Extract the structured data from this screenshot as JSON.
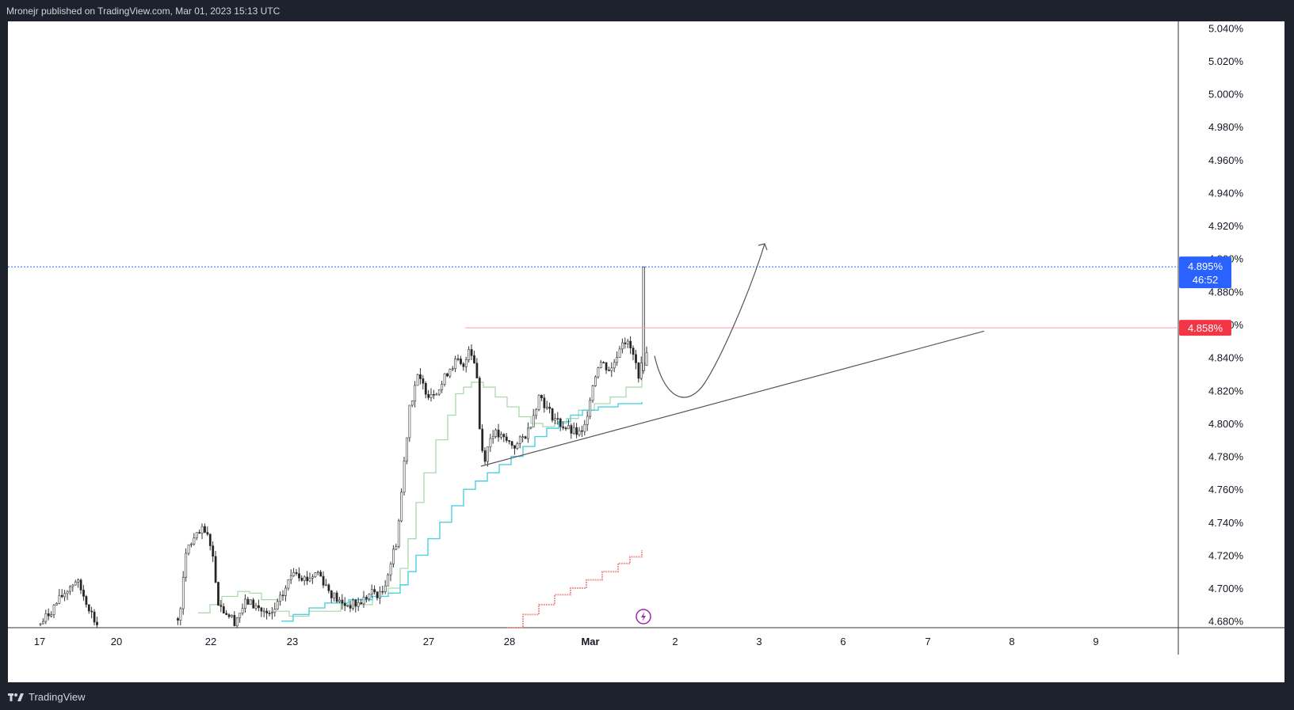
{
  "header": {
    "publish_text": "Mronejr published on TradingView.com, Mar 01, 2023 15:13 UTC"
  },
  "footer": {
    "brand": "TradingView"
  },
  "colors": {
    "candle_up": "#ffffff",
    "candle_down": "#222222",
    "candle_border": "#333333",
    "price_badge": "#2962ff",
    "level_badge": "#f23645",
    "ma_fast": "#a5d6a7",
    "ma_mid": "#4dd0e1",
    "ma_slow": "#ef9a9a",
    "projection": "#555555"
  },
  "chart_data": {
    "type": "candlestick",
    "yunit": "%",
    "ylim": [
      4.676,
      5.044
    ],
    "y_ticks": [
      "5.040%",
      "5.020%",
      "5.000%",
      "4.980%",
      "4.960%",
      "4.940%",
      "4.920%",
      "4.900%",
      "4.880%",
      "4.860%",
      "4.840%",
      "4.820%",
      "4.800%",
      "4.780%",
      "4.760%",
      "4.740%",
      "4.720%",
      "4.700%",
      "4.680%"
    ],
    "x_ticks": [
      "17",
      "20",
      "22",
      "23",
      "27",
      "28",
      "Mar",
      "2",
      "3",
      "6",
      "7",
      "8",
      "9"
    ],
    "current_price": {
      "label": "4.895%",
      "countdown": "46:52",
      "value": 4.895
    },
    "resistance": {
      "label": "4.858%",
      "value": 4.858
    },
    "ma_fast_tail": 4.828,
    "ma_mid_tail": 4.813,
    "ma_slow_tail": 4.723
  }
}
